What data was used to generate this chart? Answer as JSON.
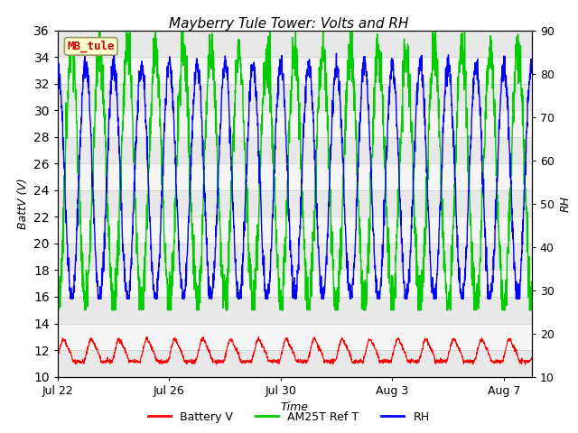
{
  "title": "Mayberry Tule Tower: Volts and RH",
  "xlabel": "Time",
  "ylabel_left": "BattV (V)",
  "ylabel_right": "RH",
  "ylim_left": [
    10,
    36
  ],
  "ylim_right": [
    10,
    90
  ],
  "yticks_left": [
    10,
    12,
    14,
    16,
    18,
    20,
    22,
    24,
    26,
    28,
    30,
    32,
    34,
    36
  ],
  "yticks_right": [
    10,
    20,
    30,
    40,
    50,
    60,
    70,
    80,
    90
  ],
  "xtick_positions": [
    0,
    4,
    8,
    12,
    16
  ],
  "xtick_labels": [
    "Jul 22",
    "Jul 26",
    "Jul 30",
    "Aug 3",
    "Aug 7"
  ],
  "xlim": [
    0,
    17
  ],
  "color_battery": "#ff0000",
  "color_am25t": "#00cc00",
  "color_rh": "#0000ff",
  "legend_labels": [
    "Battery V",
    "AM25T Ref T",
    "RH"
  ],
  "annotation_text": "MB_tule",
  "annotation_box_facecolor": "#ffffcc",
  "annotation_box_edgecolor": "#999966",
  "annotation_text_color": "#cc0000",
  "background_color": "#ffffff",
  "n_points": 2000,
  "n_days": 17
}
